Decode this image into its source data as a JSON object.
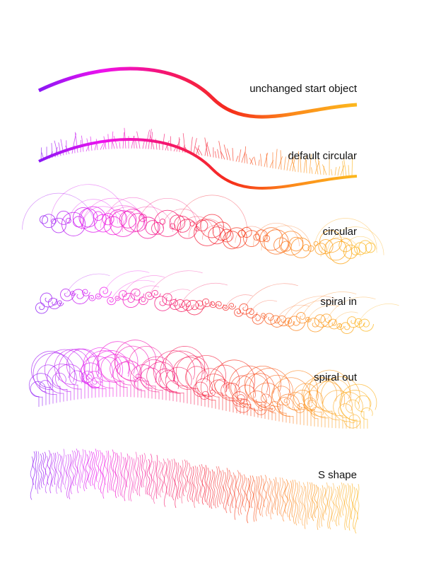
{
  "gradient": [
    "#8a16f5",
    "#ee12ee",
    "#f5156e",
    "#f52d1a",
    "#fc8a1a",
    "#fcb81e"
  ],
  "rows": [
    {
      "label": "unchanged start object",
      "style": "line"
    },
    {
      "label": "default circular",
      "style": "grass"
    },
    {
      "label": "circular",
      "style": "circles"
    },
    {
      "label": "spiral in",
      "style": "spiral-in"
    },
    {
      "label": "spiral out",
      "style": "spiral-out"
    },
    {
      "label": "S shape",
      "style": "s-shape"
    }
  ]
}
